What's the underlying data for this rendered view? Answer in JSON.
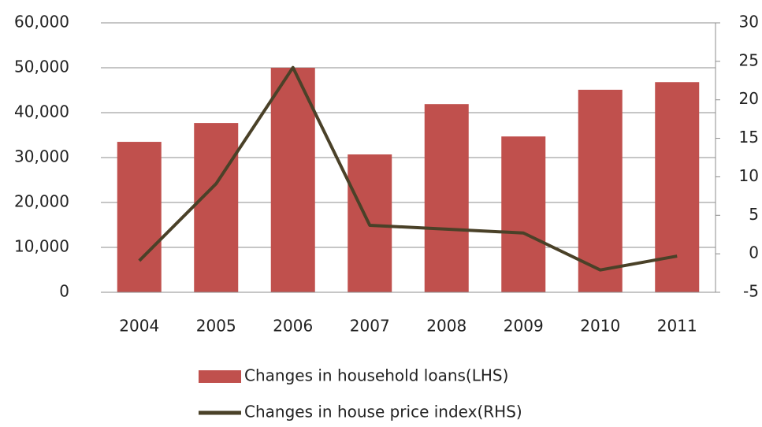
{
  "chart_data": {
    "type": "bar",
    "categories": [
      "2004",
      "2005",
      "2006",
      "2007",
      "2008",
      "2009",
      "2010",
      "2011"
    ],
    "series": [
      {
        "name": "Changes in household loans(LHS)",
        "color": "#c0504d",
        "type": "bar",
        "values": [
          33500,
          37700,
          50000,
          30700,
          41900,
          34700,
          45100,
          46800
        ]
      },
      {
        "name": "Changes in house price index(RHS)",
        "color": "#4a4128",
        "type": "line",
        "axis": "y2",
        "values": [
          -0.9,
          9.1,
          24.2,
          3.7,
          3.2,
          2.7,
          -2.1,
          -0.3
        ]
      }
    ],
    "ylim": [
      0,
      60000
    ],
    "yticks": [
      0,
      {
        "value": 10000,
        "label": "10,000"
      },
      {
        "value": 20000,
        "label": "20,000"
      },
      {
        "value": 30000,
        "label": "30,000"
      },
      {
        "value": 40000,
        "label": "40,000"
      },
      {
        "value": 50000,
        "label": "50,000"
      },
      {
        "value": 60000,
        "label": "60,000"
      }
    ],
    "y2lim": [
      -5,
      30
    ],
    "y2ticks": [
      -5,
      0,
      5,
      10,
      15,
      20,
      25,
      30
    ],
    "grid": true,
    "legend": "bottom"
  }
}
